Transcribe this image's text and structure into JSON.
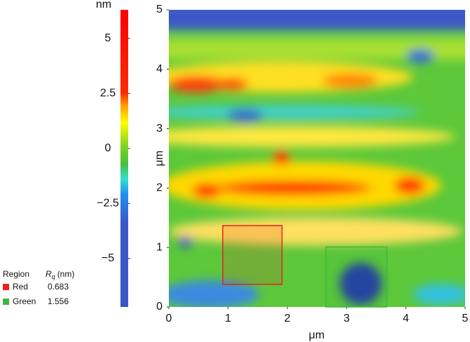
{
  "chart_data": {
    "type": "heatmap",
    "colorbar": {
      "label": "nm",
      "lim": [
        -7.2,
        6.3
      ],
      "ticks": [
        5,
        2.5,
        0,
        {
          "value": -2.5,
          "label": "−2.5"
        },
        {
          "value": -5,
          "label": "−5"
        }
      ]
    },
    "xlabel": "μm",
    "ylabel": "μm",
    "xlim": [
      0,
      5
    ],
    "ylim": [
      0,
      5
    ],
    "xticks": [
      0,
      1,
      2,
      3,
      4,
      5
    ],
    "yticks": [
      0,
      1,
      2,
      3,
      4,
      5
    ],
    "regions": [
      {
        "name": "Red",
        "color": "#e8231f",
        "x": [
          0.91,
          1.91
        ],
        "y": [
          0.38,
          1.37
        ],
        "rq": 0.683
      },
      {
        "name": "Green",
        "color": "#3cb83c",
        "x": [
          2.65,
          3.68
        ],
        "y": [
          0,
          1.01
        ],
        "rq": 1.556
      }
    ],
    "legend": {
      "title": "Region",
      "rq_symbol": "R",
      "rq_subscript": "q",
      "rq_unit": "(nm)"
    }
  }
}
